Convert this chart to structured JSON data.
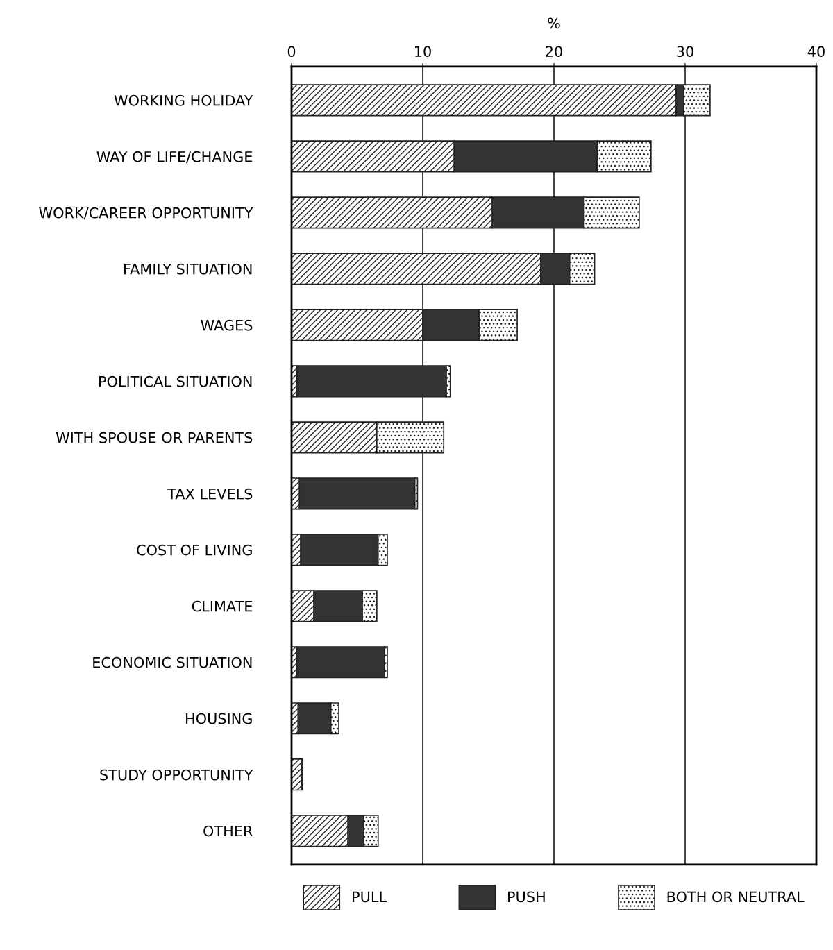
{
  "chart_data": {
    "type": "bar",
    "orientation": "horizontal",
    "stacked": true,
    "xlabel": "%",
    "categories": [
      "WORKING HOLIDAY",
      "WAY OF LIFE/CHANGE",
      "WORK/CAREER OPPORTUNITY",
      "FAMILY SITUATION",
      "WAGES",
      "POLITICAL SITUATION",
      "WITH SPOUSE OR PARENTS",
      "TAX LEVELS",
      "COST OF LIVING",
      "CLIMATE",
      "ECONOMIC SITUATION",
      "HOUSING",
      "STUDY OPPORTUNITY",
      "OTHER"
    ],
    "series": [
      {
        "name": "PULL",
        "color": "#222222",
        "values": [
          29.3,
          12.4,
          15.3,
          19.0,
          10.0,
          0.4,
          6.5,
          0.6,
          0.7,
          1.7,
          0.4,
          0.5,
          0.8,
          4.3
        ]
      },
      {
        "name": "PUSH",
        "color": "#333333",
        "values": [
          0.6,
          10.9,
          7.0,
          2.2,
          4.3,
          11.4,
          0,
          8.8,
          5.9,
          3.7,
          6.7,
          2.5,
          0,
          1.2
        ]
      },
      {
        "name": "BOTH OR NEUTRAL",
        "color": "#222222",
        "values": [
          2.0,
          4.1,
          4.2,
          1.9,
          2.9,
          0.3,
          5.1,
          0.2,
          0.7,
          1.1,
          0.2,
          0.6,
          0,
          1.1
        ]
      }
    ],
    "xlim": [
      0,
      40
    ],
    "xticks": [
      0,
      10,
      20,
      30,
      40
    ],
    "grid": "x",
    "legend": "bottom"
  }
}
